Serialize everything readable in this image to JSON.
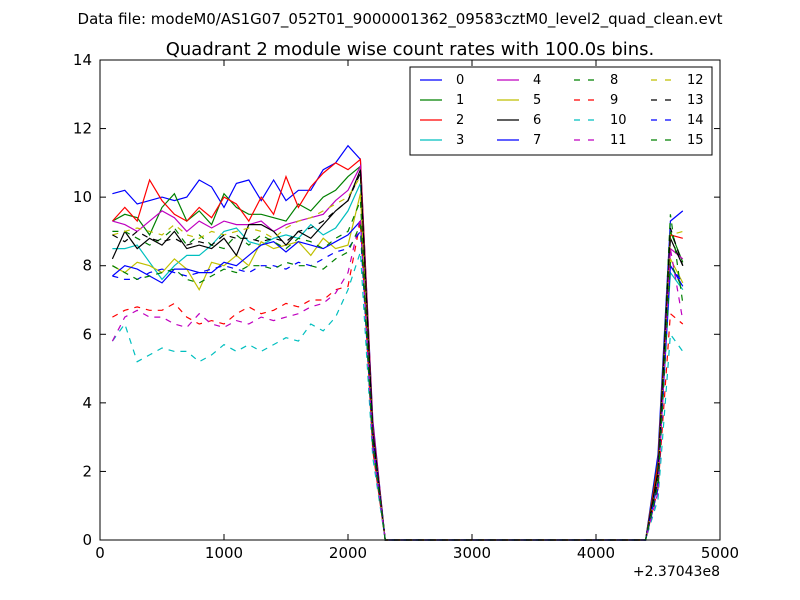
{
  "suptitle": "Data file: modeM0/AS1G07_052T01_9000001362_09583cztM0_level2_quad_clean.evt",
  "chart_data": {
    "type": "line",
    "title": "Quadrant 2 module wise count rates with 100.0s bins.",
    "xlabel": "",
    "ylabel": "",
    "x_offset_label": "+2.37043e8",
    "xlim": [
      0,
      5000
    ],
    "ylim": [
      0,
      14
    ],
    "xticks": [
      0,
      1000,
      2000,
      3000,
      4000,
      5000
    ],
    "yticks": [
      0,
      2,
      4,
      6,
      8,
      10,
      12,
      14
    ],
    "grid": false,
    "legend_position": "upper-right",
    "x": [
      100,
      200,
      300,
      400,
      500,
      600,
      700,
      800,
      900,
      1000,
      1100,
      1200,
      1300,
      1400,
      1500,
      1600,
      1700,
      1800,
      1900,
      2000,
      2100,
      2200,
      2300,
      2400,
      2500,
      2600,
      2700,
      2800,
      2900,
      3000,
      3100,
      3200,
      3300,
      3400,
      3500,
      3600,
      3700,
      3800,
      3900,
      4000,
      4100,
      4200,
      4300,
      4400,
      4500,
      4600,
      4700
    ],
    "series": [
      {
        "name": "0",
        "color": "#0000ff",
        "dash": false,
        "values": [
          10.1,
          10.2,
          9.8,
          9.9,
          10.0,
          9.9,
          10.0,
          10.5,
          10.3,
          9.7,
          10.4,
          10.5,
          9.9,
          10.5,
          9.9,
          10.2,
          10.2,
          10.8,
          11.0,
          11.5,
          11.1,
          3.5,
          0,
          0,
          0,
          0,
          0,
          0,
          0,
          0,
          0,
          0,
          0,
          0,
          0,
          0,
          0,
          0,
          0,
          0,
          0,
          0,
          0,
          0,
          2.5,
          9.3,
          9.6
        ]
      },
      {
        "name": "1",
        "color": "#008000",
        "dash": false,
        "values": [
          9.3,
          9.5,
          9.4,
          8.9,
          9.7,
          10.1,
          9.3,
          9.6,
          9.2,
          10.1,
          9.7,
          9.5,
          9.5,
          9.4,
          9.3,
          9.8,
          9.6,
          10.0,
          10.2,
          10.6,
          10.9,
          3.3,
          0,
          0,
          0,
          0,
          0,
          0,
          0,
          0,
          0,
          0,
          0,
          0,
          0,
          0,
          0,
          0,
          0,
          0,
          0,
          0,
          0,
          0,
          2.3,
          9.0,
          8.1
        ]
      },
      {
        "name": "2",
        "color": "#ff0000",
        "dash": false,
        "values": [
          9.3,
          9.7,
          9.3,
          10.5,
          9.9,
          9.5,
          9.3,
          9.7,
          9.4,
          10.0,
          9.8,
          9.3,
          10.0,
          9.5,
          10.6,
          9.7,
          10.3,
          10.7,
          11.0,
          10.8,
          11.1,
          3.4,
          0,
          0,
          0,
          0,
          0,
          0,
          0,
          0,
          0,
          0,
          0,
          0,
          0,
          0,
          0,
          0,
          0,
          0,
          0,
          0,
          0,
          0,
          2.2,
          8.9,
          8.8
        ]
      },
      {
        "name": "3",
        "color": "#00bfbf",
        "dash": false,
        "values": [
          8.5,
          8.5,
          8.6,
          8.1,
          7.6,
          8.0,
          8.3,
          8.3,
          8.6,
          9.0,
          9.1,
          8.7,
          8.6,
          8.8,
          8.9,
          8.8,
          9.2,
          8.9,
          9.1,
          9.6,
          10.4,
          3.0,
          0,
          0,
          0,
          0,
          0,
          0,
          0,
          0,
          0,
          0,
          0,
          0,
          0,
          0,
          0,
          0,
          0,
          0,
          0,
          0,
          0,
          0,
          1.8,
          7.8,
          7.3
        ]
      },
      {
        "name": "4",
        "color": "#bf00bf",
        "dash": false,
        "values": [
          9.3,
          9.2,
          9.0,
          9.3,
          9.6,
          9.4,
          9.0,
          9.3,
          9.1,
          9.3,
          9.2,
          9.2,
          9.3,
          9.0,
          9.2,
          9.3,
          9.4,
          9.5,
          9.9,
          10.2,
          10.9,
          3.3,
          0,
          0,
          0,
          0,
          0,
          0,
          0,
          0,
          0,
          0,
          0,
          0,
          0,
          0,
          0,
          0,
          0,
          0,
          0,
          0,
          0,
          0,
          2.0,
          8.5,
          8.2
        ]
      },
      {
        "name": "5",
        "color": "#bfbf00",
        "dash": false,
        "values": [
          8.0,
          7.8,
          8.1,
          8.0,
          7.8,
          8.2,
          7.9,
          7.3,
          8.1,
          8.0,
          8.3,
          8.0,
          8.7,
          8.5,
          8.6,
          8.7,
          8.3,
          8.8,
          8.5,
          8.6,
          10.1,
          3.0,
          0,
          0,
          0,
          0,
          0,
          0,
          0,
          0,
          0,
          0,
          0,
          0,
          0,
          0,
          0,
          0,
          0,
          0,
          0,
          0,
          0,
          0,
          1.9,
          8.2,
          7.5
        ]
      },
      {
        "name": "6",
        "color": "#000000",
        "dash": false,
        "values": [
          8.2,
          9.0,
          8.5,
          8.8,
          8.6,
          9.0,
          8.5,
          8.6,
          8.5,
          8.8,
          8.3,
          9.2,
          9.2,
          9.0,
          8.6,
          9.0,
          8.8,
          9.2,
          9.6,
          9.9,
          10.8,
          3.2,
          0,
          0,
          0,
          0,
          0,
          0,
          0,
          0,
          0,
          0,
          0,
          0,
          0,
          0,
          0,
          0,
          0,
          0,
          0,
          0,
          0,
          0,
          2.0,
          8.8,
          8.0
        ]
      },
      {
        "name": "7",
        "color": "#0000ff",
        "dash": false,
        "values": [
          7.7,
          8.0,
          7.9,
          7.7,
          7.5,
          7.9,
          7.9,
          7.8,
          7.8,
          8.1,
          8.0,
          8.3,
          8.6,
          8.7,
          8.4,
          8.7,
          8.6,
          8.5,
          8.7,
          8.9,
          9.3,
          2.9,
          0,
          0,
          0,
          0,
          0,
          0,
          0,
          0,
          0,
          0,
          0,
          0,
          0,
          0,
          0,
          0,
          0,
          0,
          0,
          0,
          0,
          0,
          1.7,
          8.0,
          7.4
        ]
      },
      {
        "name": "8",
        "color": "#008000",
        "dash": true,
        "values": [
          9.0,
          9.0,
          8.8,
          8.6,
          8.8,
          9.1,
          8.6,
          8.9,
          8.6,
          8.5,
          8.9,
          8.6,
          8.9,
          8.7,
          8.5,
          8.8,
          8.7,
          8.5,
          8.8,
          9.0,
          9.9,
          3.0,
          0,
          0,
          0,
          0,
          0,
          0,
          0,
          0,
          0,
          0,
          0,
          0,
          0,
          0,
          0,
          0,
          0,
          0,
          0,
          0,
          0,
          0,
          1.8,
          9.5,
          6.9
        ]
      },
      {
        "name": "9",
        "color": "#ff0000",
        "dash": true,
        "values": [
          6.5,
          6.7,
          6.8,
          6.7,
          6.7,
          6.9,
          6.5,
          6.3,
          6.4,
          6.3,
          6.6,
          6.8,
          6.6,
          6.7,
          6.9,
          6.8,
          7.0,
          7.0,
          7.3,
          7.4,
          9.3,
          2.6,
          0,
          0,
          0,
          0,
          0,
          0,
          0,
          0,
          0,
          0,
          0,
          0,
          0,
          0,
          0,
          0,
          0,
          0,
          0,
          0,
          0,
          0,
          1.5,
          6.6,
          6.3
        ]
      },
      {
        "name": "10",
        "color": "#00bfbf",
        "dash": true,
        "values": [
          5.8,
          6.3,
          5.2,
          5.4,
          5.6,
          5.5,
          5.5,
          5.2,
          5.4,
          5.7,
          5.5,
          5.7,
          5.5,
          5.7,
          5.9,
          5.8,
          6.3,
          6.1,
          6.5,
          7.3,
          8.4,
          2.4,
          0,
          0,
          0,
          0,
          0,
          0,
          0,
          0,
          0,
          0,
          0,
          0,
          0,
          0,
          0,
          0,
          0,
          0,
          0,
          0,
          0,
          0,
          1.2,
          6.0,
          5.5
        ]
      },
      {
        "name": "11",
        "color": "#bf00bf",
        "dash": true,
        "values": [
          5.8,
          6.5,
          6.7,
          6.5,
          6.5,
          6.3,
          6.2,
          6.6,
          6.3,
          6.2,
          6.4,
          6.3,
          6.5,
          6.4,
          6.5,
          6.6,
          6.8,
          6.9,
          7.2,
          7.8,
          9.4,
          2.7,
          0,
          0,
          0,
          0,
          0,
          0,
          0,
          0,
          0,
          0,
          0,
          0,
          0,
          0,
          0,
          0,
          0,
          0,
          0,
          0,
          0,
          0,
          1.4,
          8.5,
          6.4
        ]
      },
      {
        "name": "12",
        "color": "#bfbf00",
        "dash": true,
        "values": [
          8.9,
          9.0,
          9.1,
          9.0,
          8.9,
          9.2,
          8.9,
          8.8,
          9.0,
          8.9,
          9.0,
          9.1,
          9.0,
          8.8,
          9.1,
          9.3,
          9.4,
          9.6,
          9.8,
          10.0,
          10.6,
          3.1,
          0,
          0,
          0,
          0,
          0,
          0,
          0,
          0,
          0,
          0,
          0,
          0,
          0,
          0,
          0,
          0,
          0,
          0,
          0,
          0,
          0,
          0,
          1.8,
          8.9,
          9.0
        ]
      },
      {
        "name": "13",
        "color": "#000000",
        "dash": true,
        "values": [
          8.9,
          8.7,
          9.0,
          8.8,
          8.7,
          8.8,
          8.6,
          8.7,
          8.6,
          8.9,
          8.8,
          8.8,
          8.7,
          8.8,
          8.7,
          9.0,
          9.1,
          9.3,
          9.6,
          9.9,
          10.7,
          3.1,
          0,
          0,
          0,
          0,
          0,
          0,
          0,
          0,
          0,
          0,
          0,
          0,
          0,
          0,
          0,
          0,
          0,
          0,
          0,
          0,
          0,
          0,
          1.8,
          9.1,
          8.0
        ]
      },
      {
        "name": "14",
        "color": "#0000ff",
        "dash": true,
        "values": [
          7.7,
          7.6,
          7.6,
          7.8,
          7.9,
          7.8,
          7.7,
          7.8,
          7.9,
          8.0,
          7.9,
          7.8,
          8.0,
          8.0,
          7.9,
          8.1,
          8.0,
          8.2,
          8.4,
          8.5,
          9.0,
          2.8,
          0,
          0,
          0,
          0,
          0,
          0,
          0,
          0,
          0,
          0,
          0,
          0,
          0,
          0,
          0,
          0,
          0,
          0,
          0,
          0,
          0,
          0,
          1.5,
          8.0,
          7.5
        ]
      },
      {
        "name": "15",
        "color": "#008000",
        "dash": true,
        "values": [
          8.0,
          7.8,
          7.6,
          7.7,
          7.8,
          7.9,
          7.6,
          7.5,
          7.7,
          7.9,
          7.8,
          8.0,
          8.0,
          7.9,
          8.1,
          8.0,
          8.0,
          7.9,
          8.2,
          8.4,
          9.2,
          2.8,
          0,
          0,
          0,
          0,
          0,
          0,
          0,
          0,
          0,
          0,
          0,
          0,
          0,
          0,
          0,
          0,
          0,
          0,
          0,
          0,
          0,
          0,
          1.6,
          8.1,
          7.3
        ]
      }
    ]
  }
}
